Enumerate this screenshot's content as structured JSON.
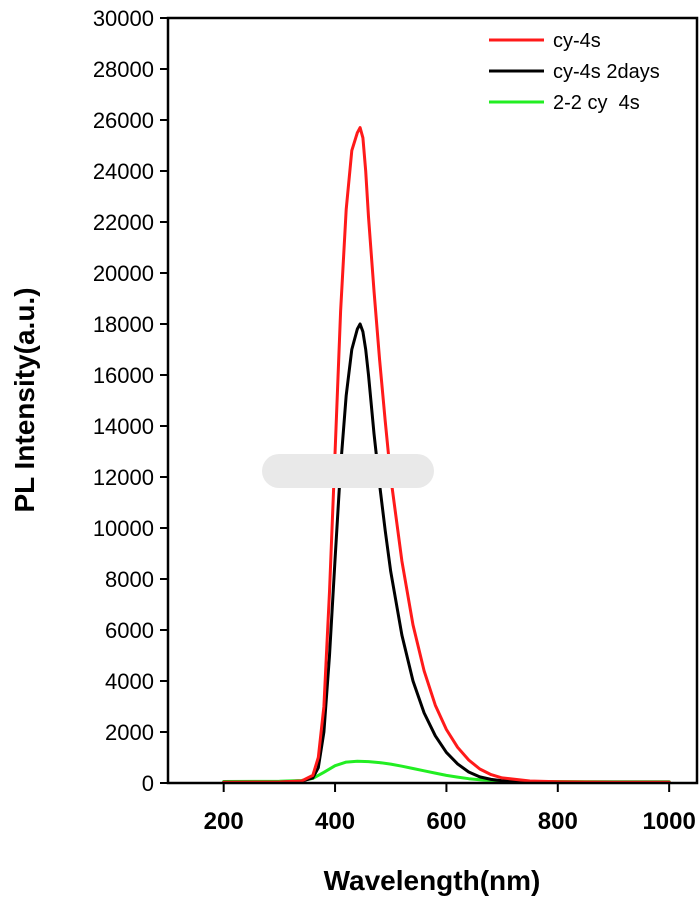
{
  "chart_data": {
    "type": "line",
    "title": "",
    "xlabel": "Wavelength(nm)",
    "ylabel": "PL Intensity(a.u.)",
    "xlim": [
      100,
      1050
    ],
    "ylim": [
      0,
      30000
    ],
    "x_ticks": [
      200,
      400,
      600,
      800,
      1000
    ],
    "y_ticks": [
      0,
      2000,
      4000,
      6000,
      8000,
      10000,
      12000,
      14000,
      16000,
      18000,
      20000,
      22000,
      24000,
      26000,
      28000,
      30000
    ],
    "grid": false,
    "legend_position": "top-right",
    "series": [
      {
        "name": "cy-4s",
        "color": "#ff1a1a",
        "x": [
          200,
          300,
          340,
          360,
          370,
          380,
          390,
          400,
          410,
          420,
          430,
          440,
          445,
          450,
          455,
          460,
          470,
          480,
          490,
          500,
          520,
          540,
          560,
          580,
          600,
          620,
          640,
          660,
          680,
          700,
          750,
          800,
          900,
          1000
        ],
        "y": [
          30,
          40,
          80,
          300,
          1000,
          3000,
          7500,
          13000,
          18500,
          22500,
          24800,
          25500,
          25700,
          25300,
          24000,
          22200,
          19300,
          16600,
          14200,
          12000,
          8700,
          6200,
          4400,
          3050,
          2100,
          1400,
          900,
          550,
          330,
          200,
          80,
          50,
          30,
          30
        ]
      },
      {
        "name": "cy-4s 2days",
        "color": "#000000",
        "x": [
          200,
          300,
          340,
          360,
          370,
          380,
          390,
          400,
          410,
          420,
          430,
          440,
          445,
          450,
          455,
          460,
          470,
          480,
          490,
          500,
          520,
          540,
          560,
          580,
          600,
          620,
          640,
          660,
          680,
          700,
          750,
          800,
          900,
          1000
        ],
        "y": [
          30,
          40,
          70,
          200,
          600,
          2000,
          5000,
          8800,
          12400,
          15200,
          17000,
          17800,
          18000,
          17700,
          17000,
          16000,
          13700,
          11700,
          9900,
          8300,
          5800,
          4000,
          2750,
          1850,
          1200,
          750,
          430,
          240,
          140,
          90,
          50,
          40,
          30,
          30
        ]
      },
      {
        "name": "2-2 cy  4s",
        "color": "#22ee22",
        "x": [
          200,
          300,
          340,
          360,
          380,
          400,
          420,
          440,
          460,
          480,
          500,
          520,
          540,
          560,
          580,
          600,
          620,
          640,
          660,
          680,
          700,
          750,
          800,
          900,
          1000
        ],
        "y": [
          60,
          70,
          100,
          180,
          420,
          680,
          820,
          850,
          840,
          800,
          740,
          660,
          570,
          480,
          390,
          300,
          230,
          170,
          130,
          100,
          80,
          60,
          60,
          50,
          50
        ]
      }
    ]
  }
}
